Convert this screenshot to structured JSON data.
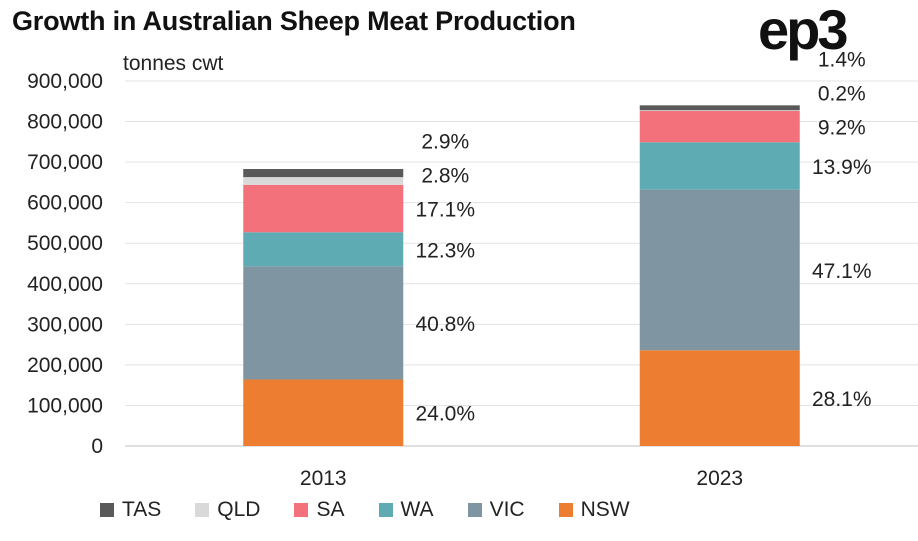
{
  "header": {
    "title": "Growth in Australian Sheep Meat Production",
    "logo": "ep3"
  },
  "chart_data": {
    "type": "bar",
    "stacked": true,
    "title": "Growth in Australian Sheep Meat Production",
    "ylabel": "tonnes cwt",
    "xlabel": "",
    "ylim": [
      0,
      900000
    ],
    "yticks": [
      "0",
      "100,000",
      "200,000",
      "300,000",
      "400,000",
      "500,000",
      "600,000",
      "700,000",
      "800,000",
      "900,000"
    ],
    "categories": [
      "2013",
      "2023"
    ],
    "series": [
      {
        "name": "NSW",
        "color": "#ed7d31",
        "values": [
          164000,
          236000
        ],
        "labels": [
          "24.0%",
          "28.1%"
        ]
      },
      {
        "name": "VIC",
        "color": "#7f96a2",
        "values": [
          279000,
          396000
        ],
        "labels": [
          "40.8%",
          "47.1%"
        ]
      },
      {
        "name": "WA",
        "color": "#5fabb3",
        "values": [
          84000,
          117000
        ],
        "labels": [
          "12.3%",
          "13.9%"
        ]
      },
      {
        "name": "SA",
        "color": "#f3717a",
        "values": [
          117000,
          77000
        ],
        "labels": [
          "17.1%",
          "9.2%"
        ]
      },
      {
        "name": "QLD",
        "color": "#d9d9d9",
        "values": [
          19000,
          2000
        ],
        "labels": [
          "2.8%",
          "0.2%"
        ]
      },
      {
        "name": "TAS",
        "color": "#595959",
        "values": [
          20000,
          12000
        ],
        "labels": [
          "2.9%",
          "1.4%"
        ]
      }
    ],
    "legend": {
      "placement": "bottom",
      "order": [
        "TAS",
        "QLD",
        "SA",
        "WA",
        "VIC",
        "NSW"
      ]
    },
    "grid": true
  }
}
